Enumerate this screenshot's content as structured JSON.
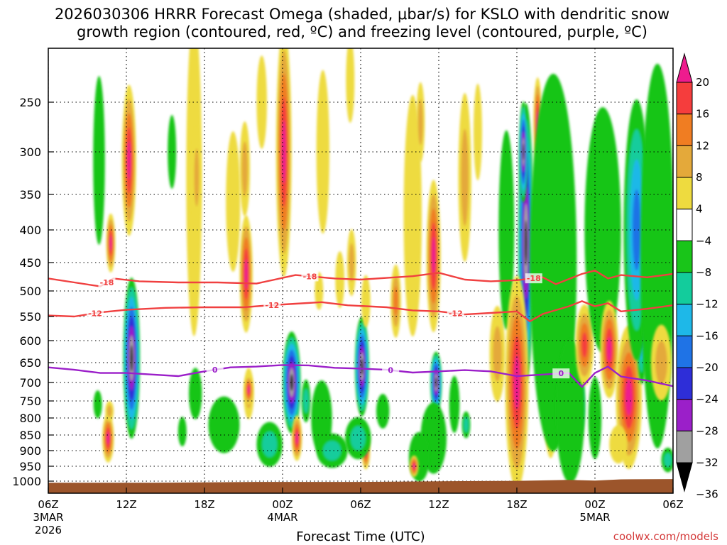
{
  "title_line1": "2026030306 HRRR Forecast Omega (shaded, μbar/s) for KSLO with dendritic snow",
  "title_line2": "growth region (contoured, red, ºC) and freezing level (contoured, purple, ºC)",
  "credit": "coolwx.com/models",
  "chart_data": {
    "type": "heatmap",
    "title": "2026030306 HRRR Forecast Omega (shaded, μbar/s) for KSLO with dendritic snow growth region (contoured, red, ºC) and freezing level (contoured, purple, ºC)",
    "xlabel": "Forecast Time (UTC)",
    "ylabel": "",
    "x_range_hours": [
      0,
      48
    ],
    "y_range_hpa": [
      1015,
      200
    ],
    "y_ticks": [
      250,
      300,
      350,
      400,
      450,
      500,
      550,
      600,
      650,
      700,
      750,
      800,
      850,
      900,
      950,
      1000
    ],
    "x_ticks": [
      {
        "hour": 0,
        "label": "06Z",
        "sub1": "3MAR",
        "sub2": "2026"
      },
      {
        "hour": 6,
        "label": "12Z",
        "sub1": "",
        "sub2": ""
      },
      {
        "hour": 12,
        "label": "18Z",
        "sub1": "",
        "sub2": ""
      },
      {
        "hour": 18,
        "label": "00Z",
        "sub1": "4MAR",
        "sub2": ""
      },
      {
        "hour": 24,
        "label": "06Z",
        "sub1": "",
        "sub2": ""
      },
      {
        "hour": 30,
        "label": "12Z",
        "sub1": "",
        "sub2": ""
      },
      {
        "hour": 36,
        "label": "18Z",
        "sub1": "",
        "sub2": ""
      },
      {
        "hour": 42,
        "label": "00Z",
        "sub1": "5MAR",
        "sub2": ""
      },
      {
        "hour": 48,
        "label": "06Z",
        "sub1": "",
        "sub2": ""
      }
    ],
    "grid": true,
    "colorbar": {
      "placement": "right",
      "labels": [
        "20",
        "16",
        "12",
        "8",
        "4",
        "−4",
        "−8",
        "−12",
        "−16",
        "−20",
        "−24",
        "−28",
        "−32",
        "−36"
      ],
      "colors": [
        "#ee1c8e",
        "#f53d3d",
        "#f07d22",
        "#e4a93a",
        "#eedb3f",
        "#ffffff",
        "#19c519",
        "#13cc9c",
        "#1eb8e8",
        "#1f73e6",
        "#2e2ed8",
        "#9b1fc9",
        "#a0a0a0",
        "#000000"
      ]
    },
    "omega_features": [
      {
        "t": 6.4,
        "p": 640,
        "dt": 0.65,
        "dp": 185,
        "v": -36
      },
      {
        "t": 6.2,
        "p": 310,
        "dt": 0.55,
        "dp": 85,
        "v": 20
      },
      {
        "t": 4.8,
        "p": 420,
        "dt": 0.35,
        "dp": 45,
        "v": 20
      },
      {
        "t": 4.6,
        "p": 860,
        "dt": 0.45,
        "dp": 75,
        "v": 20
      },
      {
        "t": 4.7,
        "p": 780,
        "dt": 0.25,
        "dp": 30,
        "v": 8
      },
      {
        "t": 3.9,
        "p": 310,
        "dt": 0.45,
        "dp": 95,
        "v": -8
      },
      {
        "t": 3.8,
        "p": 760,
        "dt": 0.2,
        "dp": 40,
        "v": -8
      },
      {
        "t": 11.3,
        "p": 730,
        "dt": 0.5,
        "dp": 70,
        "v": -8
      },
      {
        "t": 10.3,
        "p": 840,
        "dt": 0.25,
        "dp": 45,
        "v": -8
      },
      {
        "t": 11.2,
        "p": 330,
        "dt": 0.6,
        "dp": 190,
        "v": 4
      },
      {
        "t": 11.4,
        "p": 330,
        "dt": 0.25,
        "dp": 60,
        "v": 8
      },
      {
        "t": 8.4,
        "p": 320,
        "dt": 0.2,
        "dp": 40,
        "v": -4
      },
      {
        "t": 9.5,
        "p": 300,
        "dt": 0.2,
        "dp": 40,
        "v": -8
      },
      {
        "t": 13.5,
        "p": 820,
        "dt": 1.2,
        "dp": 85,
        "v": -8
      },
      {
        "t": 14.2,
        "p": 360,
        "dt": 0.55,
        "dp": 90,
        "v": 4
      },
      {
        "t": 15.2,
        "p": 470,
        "dt": 0.5,
        "dp": 100,
        "v": 20
      },
      {
        "t": 15.1,
        "p": 320,
        "dt": 0.4,
        "dp": 55,
        "v": 8
      },
      {
        "t": 15.4,
        "p": 730,
        "dt": 0.4,
        "dp": 70,
        "v": 8
      },
      {
        "t": 15.4,
        "p": 720,
        "dt": 0.2,
        "dp": 40,
        "v": 20
      },
      {
        "t": 16.4,
        "p": 250,
        "dt": 0.4,
        "dp": 45,
        "v": 4
      },
      {
        "t": 18.1,
        "p": 300,
        "dt": 0.6,
        "dp": 140,
        "v": 20
      },
      {
        "t": 18.7,
        "p": 700,
        "dt": 0.7,
        "dp": 130,
        "v": -36
      },
      {
        "t": 19.1,
        "p": 860,
        "dt": 0.4,
        "dp": 70,
        "v": 20
      },
      {
        "t": 17.0,
        "p": 880,
        "dt": 1.0,
        "dp": 70,
        "v": -12
      },
      {
        "t": 19.8,
        "p": 750,
        "dt": 0.35,
        "dp": 60,
        "v": -12
      },
      {
        "t": 21.0,
        "p": 800,
        "dt": 0.8,
        "dp": 110,
        "v": -8
      },
      {
        "t": 21.8,
        "p": 900,
        "dt": 1.2,
        "dp": 55,
        "v": -12
      },
      {
        "t": 20.8,
        "p": 500,
        "dt": 0.3,
        "dp": 35,
        "v": 4
      },
      {
        "t": 22.4,
        "p": 480,
        "dt": 0.35,
        "dp": 50,
        "v": 4
      },
      {
        "t": 21.1,
        "p": 300,
        "dt": 0.5,
        "dp": 90,
        "v": 4
      },
      {
        "t": 23.2,
        "p": 230,
        "dt": 0.3,
        "dp": 40,
        "v": 4
      },
      {
        "t": 23.3,
        "p": 450,
        "dt": 0.35,
        "dp": 55,
        "v": 8
      },
      {
        "t": 24.1,
        "p": 660,
        "dt": 0.55,
        "dp": 120,
        "v": -36
      },
      {
        "t": 24.4,
        "p": 520,
        "dt": 0.35,
        "dp": 50,
        "v": 4
      },
      {
        "t": 24.4,
        "p": 900,
        "dt": 0.3,
        "dp": 60,
        "v": 20
      },
      {
        "t": 23.8,
        "p": 860,
        "dt": 1.0,
        "dp": 65,
        "v": -12
      },
      {
        "t": 25.7,
        "p": 780,
        "dt": 0.5,
        "dp": 50,
        "v": -8
      },
      {
        "t": 26.7,
        "p": 520,
        "dt": 0.4,
        "dp": 70,
        "v": 12
      },
      {
        "t": 27.2,
        "p": 300,
        "dt": 0.3,
        "dp": 50,
        "v": -4
      },
      {
        "t": 28.0,
        "p": 380,
        "dt": 0.7,
        "dp": 160,
        "v": 4
      },
      {
        "t": 28.6,
        "p": 270,
        "dt": 0.3,
        "dp": 40,
        "v": 8
      },
      {
        "t": 29.6,
        "p": 440,
        "dt": 0.55,
        "dp": 120,
        "v": 20
      },
      {
        "t": 29.8,
        "p": 700,
        "dt": 0.45,
        "dp": 80,
        "v": -36
      },
      {
        "t": 29.6,
        "p": 860,
        "dt": 1.0,
        "dp": 110,
        "v": -8
      },
      {
        "t": 28.5,
        "p": 920,
        "dt": 0.8,
        "dp": 80,
        "v": -8
      },
      {
        "t": 28.1,
        "p": 950,
        "dt": 0.35,
        "dp": 35,
        "v": 20
      },
      {
        "t": 31.2,
        "p": 760,
        "dt": 0.4,
        "dp": 80,
        "v": -8
      },
      {
        "t": 32.0,
        "p": 330,
        "dt": 0.5,
        "dp": 100,
        "v": 8
      },
      {
        "t": 32.1,
        "p": 820,
        "dt": 0.25,
        "dp": 40,
        "v": -12
      },
      {
        "t": 33.0,
        "p": 280,
        "dt": 0.3,
        "dp": 50,
        "v": 4
      },
      {
        "t": 34.5,
        "p": 630,
        "dt": 0.6,
        "dp": 110,
        "v": 8
      },
      {
        "t": 35.2,
        "p": 400,
        "dt": 0.6,
        "dp": 140,
        "v": -8
      },
      {
        "t": 36.7,
        "p": 420,
        "dt": 0.6,
        "dp": 200,
        "v": -36
      },
      {
        "t": 36.5,
        "p": 300,
        "dt": 0.35,
        "dp": 55,
        "v": -36
      },
      {
        "t": 36.0,
        "p": 700,
        "dt": 0.9,
        "dp": 260,
        "v": 20
      },
      {
        "t": 37.6,
        "p": 270,
        "dt": 0.25,
        "dp": 45,
        "v": 20
      },
      {
        "t": 38.2,
        "p": 450,
        "dt": 0.4,
        "dp": 110,
        "v": -16
      },
      {
        "t": 38.6,
        "p": 700,
        "dt": 0.6,
        "dp": 190,
        "v": 20
      },
      {
        "t": 38.8,
        "p": 450,
        "dt": 1.8,
        "dp": 280,
        "v": -8
      },
      {
        "t": 40.6,
        "p": 760,
        "dt": 0.65,
        "dp": 110,
        "v": -36
      },
      {
        "t": 40.1,
        "p": 780,
        "dt": 1.1,
        "dp": 200,
        "v": -8
      },
      {
        "t": 41.2,
        "p": 610,
        "dt": 0.7,
        "dp": 90,
        "v": 16
      },
      {
        "t": 42.0,
        "p": 800,
        "dt": 0.5,
        "dp": 120,
        "v": -8
      },
      {
        "t": 42.6,
        "p": 400,
        "dt": 1.4,
        "dp": 170,
        "v": -8
      },
      {
        "t": 43.1,
        "p": 620,
        "dt": 0.7,
        "dp": 110,
        "v": 20
      },
      {
        "t": 44.6,
        "p": 740,
        "dt": 1.0,
        "dp": 190,
        "v": 20
      },
      {
        "t": 43.8,
        "p": 880,
        "dt": 0.7,
        "dp": 60,
        "v": 4
      },
      {
        "t": 45.6,
        "p": 490,
        "dt": 0.55,
        "dp": 170,
        "v": -36
      },
      {
        "t": 45.2,
        "p": 400,
        "dt": 1.0,
        "dp": 180,
        "v": -20
      },
      {
        "t": 46.8,
        "p": 440,
        "dt": 1.3,
        "dp": 280,
        "v": -8
      },
      {
        "t": 47.1,
        "p": 650,
        "dt": 0.8,
        "dp": 90,
        "v": 8
      },
      {
        "t": 47.6,
        "p": 930,
        "dt": 0.5,
        "dp": 40,
        "v": -12
      }
    ],
    "contours": [
      {
        "name": "-18",
        "color": "#f04040",
        "label_hours": [
          4.5,
          20.1,
          37.3
        ],
        "points": [
          [
            0,
            478
          ],
          [
            2,
            485
          ],
          [
            4,
            492
          ],
          [
            5,
            478
          ],
          [
            7,
            483
          ],
          [
            10,
            485
          ],
          [
            13,
            485
          ],
          [
            16,
            487
          ],
          [
            19,
            472
          ],
          [
            22,
            478
          ],
          [
            24,
            480
          ],
          [
            26,
            477
          ],
          [
            28,
            474
          ],
          [
            30,
            468
          ],
          [
            32,
            480
          ],
          [
            34,
            483
          ],
          [
            36,
            481
          ],
          [
            38,
            476
          ],
          [
            39,
            488
          ],
          [
            41,
            470
          ],
          [
            42,
            464
          ],
          [
            43,
            478
          ],
          [
            44,
            472
          ],
          [
            46,
            476
          ],
          [
            48,
            470
          ]
        ]
      },
      {
        "name": "-12",
        "color": "#f04040",
        "label_hours": [
          3.6,
          17.2,
          31.3
        ],
        "points": [
          [
            0,
            548
          ],
          [
            2,
            550
          ],
          [
            4,
            542
          ],
          [
            6,
            537
          ],
          [
            9,
            533
          ],
          [
            12,
            532
          ],
          [
            15,
            532
          ],
          [
            17,
            528
          ],
          [
            19,
            525
          ],
          [
            21,
            522
          ],
          [
            23,
            528
          ],
          [
            26,
            532
          ],
          [
            28,
            538
          ],
          [
            30,
            540
          ],
          [
            32,
            546
          ],
          [
            34,
            543
          ],
          [
            36,
            540
          ],
          [
            37,
            560
          ],
          [
            38,
            545
          ],
          [
            40,
            530
          ],
          [
            41,
            520
          ],
          [
            42,
            530
          ],
          [
            43,
            524
          ],
          [
            44,
            540
          ],
          [
            46,
            535
          ],
          [
            48,
            528
          ]
        ]
      },
      {
        "name": "0",
        "color": "#9b1fc9",
        "label_hours": [
          12.8,
          26.3,
          39.4
        ],
        "points": [
          [
            0,
            662
          ],
          [
            2,
            668
          ],
          [
            4,
            676
          ],
          [
            6,
            676
          ],
          [
            8,
            680
          ],
          [
            10,
            684
          ],
          [
            12,
            672
          ],
          [
            14,
            662
          ],
          [
            16,
            660
          ],
          [
            18,
            656
          ],
          [
            20,
            657
          ],
          [
            22,
            663
          ],
          [
            24,
            665
          ],
          [
            26,
            668
          ],
          [
            28,
            675
          ],
          [
            30,
            672
          ],
          [
            32,
            669
          ],
          [
            34,
            672
          ],
          [
            36,
            684
          ],
          [
            38,
            680
          ],
          [
            40,
            676
          ],
          [
            41,
            712
          ],
          [
            42,
            676
          ],
          [
            43,
            660
          ],
          [
            44,
            685
          ],
          [
            46,
            695
          ],
          [
            48,
            710
          ]
        ]
      }
    ]
  }
}
